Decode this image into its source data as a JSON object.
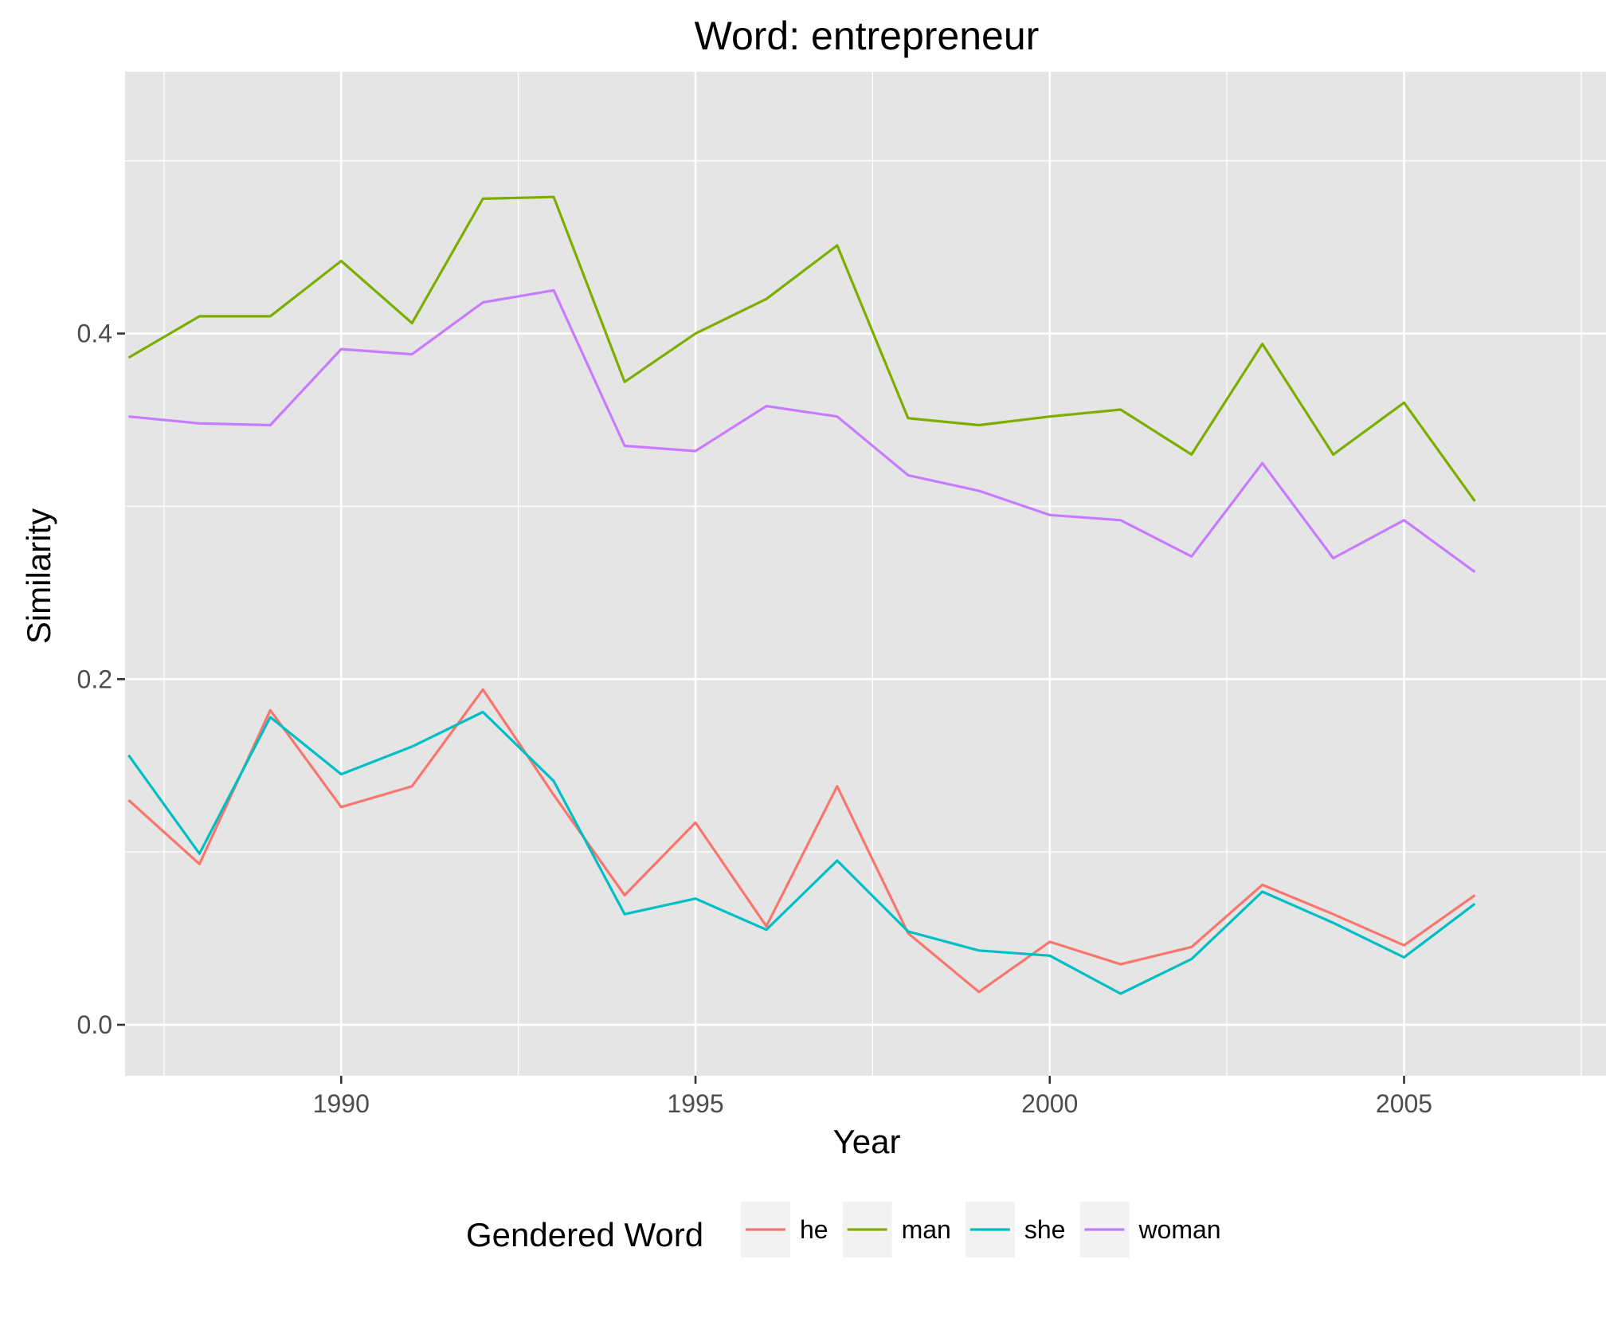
{
  "chart_data": {
    "type": "line",
    "title": "Word: entrepreneur",
    "xlabel": "Year",
    "ylabel": "Similarity",
    "x": [
      1987,
      1988,
      1989,
      1990,
      1991,
      1992,
      1993,
      1994,
      1995,
      1996,
      1997,
      1998,
      1999,
      2000,
      2001,
      2002,
      2003,
      2004,
      2005,
      2006
    ],
    "xlim": [
      1986.95,
      2007.85
    ],
    "ylim": [
      -0.0295,
      0.5515
    ],
    "x_ticks": [
      1990,
      1995,
      2000,
      2005
    ],
    "y_ticks": [
      0.0,
      0.2,
      0.4
    ],
    "x_tick_labels": [
      "1990",
      "1995",
      "2000",
      "2005"
    ],
    "y_tick_labels": [
      "0.0",
      "0.2",
      "0.4"
    ],
    "grid": true,
    "legend": {
      "title": "Gendered Word",
      "position": "bottom"
    },
    "series": [
      {
        "name": "he",
        "color": "#F8766D",
        "values": [
          0.13,
          0.093,
          0.182,
          0.126,
          0.138,
          0.194,
          0.133,
          0.075,
          0.117,
          0.057,
          0.138,
          0.053,
          0.019,
          0.048,
          0.035,
          0.045,
          0.081,
          0.064,
          0.046,
          0.075
        ]
      },
      {
        "name": "man",
        "color": "#7CAE00",
        "values": [
          0.386,
          0.41,
          0.41,
          0.442,
          0.406,
          0.478,
          0.479,
          0.372,
          0.4,
          0.42,
          0.451,
          0.351,
          0.347,
          0.352,
          0.356,
          0.33,
          0.394,
          0.33,
          0.36,
          0.303
        ]
      },
      {
        "name": "she",
        "color": "#00BFC4",
        "values": [
          0.156,
          0.099,
          0.178,
          0.145,
          0.161,
          0.181,
          0.141,
          0.064,
          0.073,
          0.055,
          0.095,
          0.054,
          0.043,
          0.04,
          0.018,
          0.038,
          0.077,
          0.059,
          0.039,
          0.07
        ]
      },
      {
        "name": "woman",
        "color": "#C77CFF",
        "values": [
          0.352,
          0.348,
          0.347,
          0.391,
          0.388,
          0.418,
          0.425,
          0.335,
          0.332,
          0.358,
          0.352,
          0.318,
          0.309,
          0.295,
          0.292,
          0.271,
          0.325,
          0.27,
          0.292,
          0.262
        ]
      }
    ]
  }
}
